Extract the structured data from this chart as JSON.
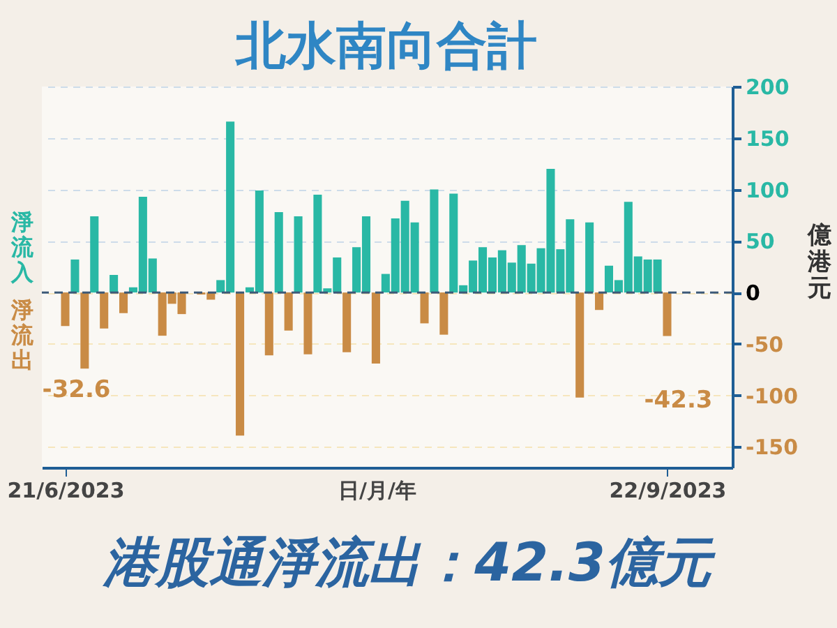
{
  "chart_data": {
    "type": "bar",
    "title": "北水南向合計",
    "xlabel": "日/月/年",
    "ylabel": "億港元",
    "categories": [
      "21/6/2023",
      null,
      null,
      null,
      null,
      null,
      null,
      null,
      null,
      null,
      null,
      null,
      null,
      null,
      null,
      null,
      null,
      null,
      null,
      null,
      null,
      null,
      null,
      null,
      null,
      null,
      null,
      null,
      null,
      null,
      null,
      null,
      null,
      null,
      null,
      null,
      null,
      null,
      null,
      null,
      null,
      null,
      null,
      null,
      null,
      null,
      null,
      null,
      null,
      null,
      null,
      null,
      null,
      null,
      null,
      null,
      null,
      null,
      null,
      null,
      null,
      null,
      "22/9/2023"
    ],
    "series": [
      {
        "name": "淨流入",
        "color": "#29b8a5",
        "values": [
          null,
          32,
          null,
          74,
          null,
          17,
          null,
          5,
          93,
          33,
          null,
          null,
          null,
          null,
          null,
          null,
          12,
          166,
          null,
          5,
          99,
          null,
          78,
          null,
          74,
          null,
          95,
          4,
          34,
          null,
          44,
          74,
          null,
          18,
          72,
          89,
          68,
          null,
          100,
          null,
          96,
          7,
          31,
          44,
          34,
          41,
          29,
          46,
          28,
          43,
          120,
          42,
          71,
          null,
          68,
          null,
          26,
          12,
          88,
          35,
          32,
          32,
          null
        ]
      },
      {
        "name": "淨流出",
        "color": "#c98b45",
        "values": [
          -32.6,
          null,
          -74,
          null,
          -35,
          null,
          -20,
          null,
          null,
          null,
          -42,
          -11,
          -21,
          null,
          -2,
          -7,
          null,
          null,
          -139,
          null,
          null,
          -61,
          null,
          -37,
          null,
          -60,
          null,
          null,
          null,
          -58,
          null,
          null,
          -69,
          null,
          null,
          null,
          null,
          -30,
          null,
          -41,
          null,
          null,
          null,
          null,
          null,
          null,
          null,
          null,
          null,
          null,
          null,
          null,
          null,
          -102,
          null,
          -17,
          null,
          null,
          null,
          null,
          null,
          null,
          -42.3
        ],
        "value_labels": [
          "-32.6",
          null,
          null,
          null,
          null,
          null,
          null,
          null,
          null,
          null,
          null,
          null,
          null,
          null,
          null,
          null,
          null,
          null,
          null,
          null,
          null,
          null,
          null,
          null,
          null,
          null,
          null,
          null,
          null,
          null,
          null,
          null,
          null,
          null,
          null,
          null,
          null,
          null,
          null,
          null,
          null,
          null,
          null,
          null,
          null,
          null,
          null,
          null,
          null,
          null,
          null,
          null,
          null,
          null,
          null,
          null,
          null,
          null,
          null,
          null,
          null,
          null,
          "-42.3"
        ]
      }
    ],
    "ylim": [
      -170,
      200
    ],
    "yticks": [
      -150,
      -100,
      -50,
      0,
      50,
      100,
      150,
      200
    ],
    "grid": "y",
    "legend": "left",
    "ref_lines": [
      {
        "axis": "y",
        "value": 0,
        "color": "#3d5a78",
        "line_style": "dashed"
      }
    ],
    "annotations": [
      "港股通淨流出：42.3億元"
    ]
  }
}
